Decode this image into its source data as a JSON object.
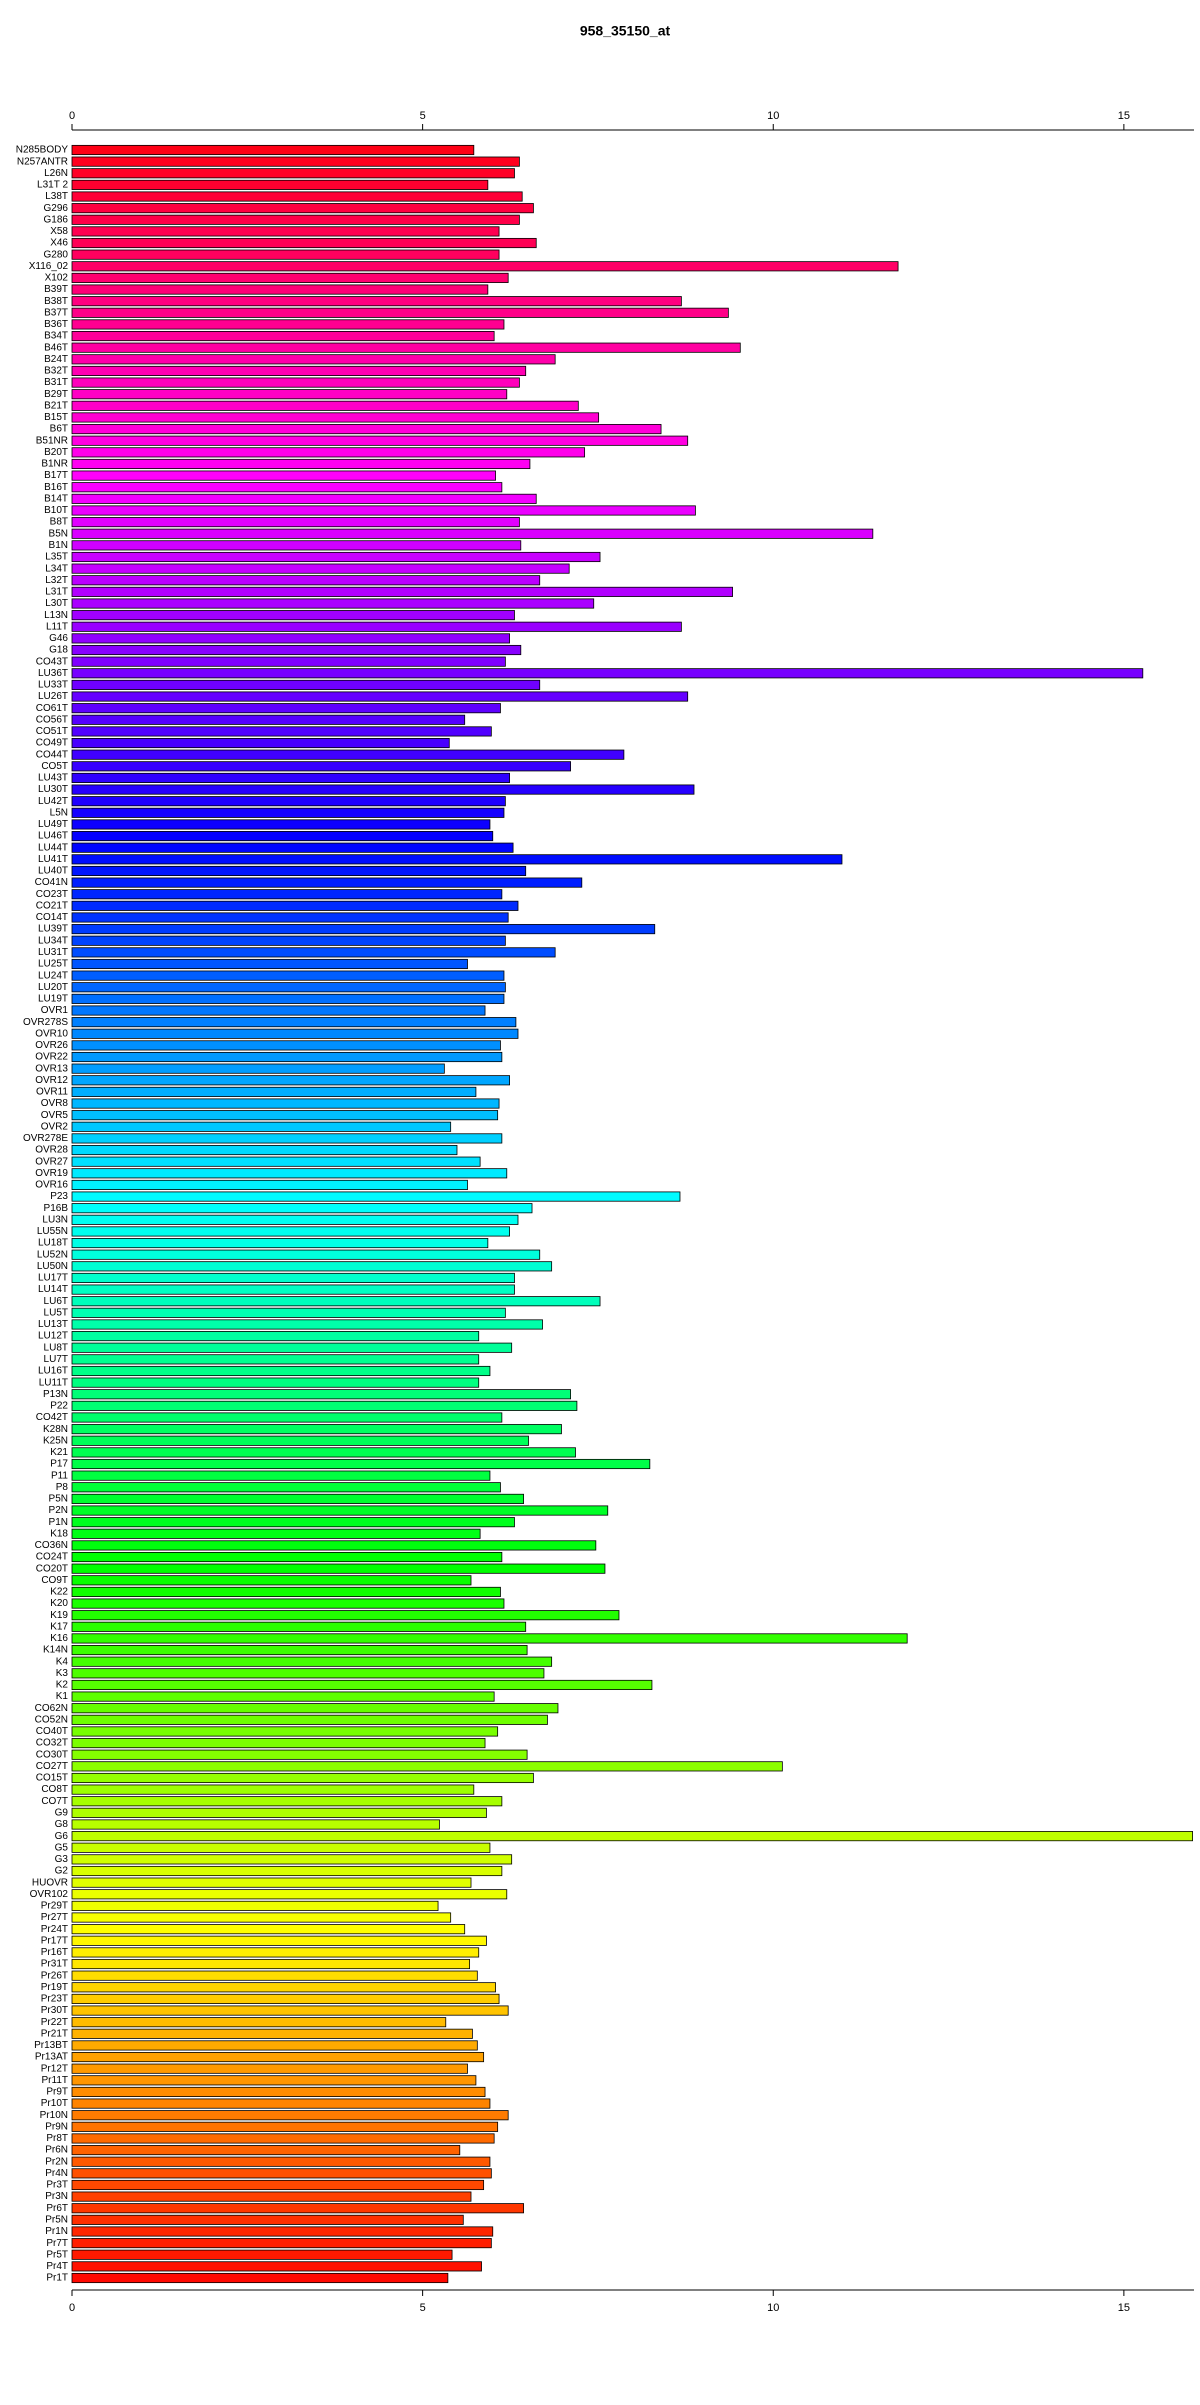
{
  "chart_data": {
    "type": "barh",
    "title": "958_35150_at",
    "categories": [
      "N285BODY",
      "N257ANTR",
      "L26N",
      "L31T 2",
      "L38T",
      "G296",
      "G186",
      "X58",
      "X46",
      "G280",
      "X116_02",
      "X102",
      "B39T",
      "B38T",
      "B37T",
      "B36T",
      "B34T",
      "B46T",
      "B24T",
      "B32T",
      "B31T",
      "B29T",
      "B21T",
      "B15T",
      "B6T",
      "B51NR",
      "B20T",
      "B1NR",
      "B17T",
      "B16T",
      "B14T",
      "B10T",
      "B8T",
      "B5N",
      "B1N",
      "L35T",
      "L34T",
      "L32T",
      "L31T",
      "L30T",
      "L13N",
      "L11T",
      "G46",
      "G18",
      "CO43T",
      "LU36T",
      "LU33T",
      "LU26T",
      "CO61T",
      "CO56T",
      "CO51T",
      "CO49T",
      "CO44T",
      "CO5T",
      "LU43T",
      "LU30T",
      "LU42T",
      "L5N",
      "LU49T",
      "LU46T",
      "LU44T",
      "LU41T",
      "LU40T",
      "CO41N",
      "CO23T",
      "CO21T",
      "CO14T",
      "LU39T",
      "LU34T",
      "LU31T",
      "LU25T",
      "LU24T",
      "LU20T",
      "LU19T",
      "OVR1",
      "OVR278S",
      "OVR10",
      "OVR26",
      "OVR22",
      "OVR13",
      "OVR12",
      "OVR11",
      "OVR8",
      "OVR5",
      "OVR2",
      "OVR278E",
      "OVR28",
      "OVR27",
      "OVR19",
      "OVR16",
      "P23",
      "P16B",
      "LU3N",
      "LU55N",
      "LU18T",
      "LU52N",
      "LU50N",
      "LU17T",
      "LU14T",
      "LU6T",
      "LU5T",
      "LU13T",
      "LU12T",
      "LU8T",
      "LU7T",
      "LU16T",
      "LU11T",
      "P13N",
      "P22",
      "CO42T",
      "K28N",
      "K25N",
      "K21",
      "P17",
      "P11",
      "P8",
      "P5N",
      "P2N",
      "P1N",
      "K18",
      "CO36N",
      "CO24T",
      "CO20T",
      "CO9T",
      "K22",
      "K20",
      "K19",
      "K17",
      "K16",
      "K14N",
      "K4",
      "K3",
      "K2",
      "K1",
      "CO62N",
      "CO52N",
      "CO40T",
      "CO32T",
      "CO30T",
      "CO27T",
      "CO15T",
      "CO8T",
      "CO7T",
      "G9",
      "G8",
      "G6",
      "G5",
      "G3",
      "G2",
      "HUOVR",
      "OVR102",
      "Pr29T",
      "Pr27T",
      "Pr24T",
      "Pr17T",
      "Pr16T",
      "Pr31T",
      "Pr26T",
      "Pr19T",
      "Pr23T",
      "Pr30T",
      "Pr22T",
      "Pr21T",
      "Pr13BT",
      "Pr13AT",
      "Pr12T",
      "Pr11T",
      "Pr9T",
      "Pr10T",
      "Pr10N",
      "Pr9N",
      "Pr8T",
      "Pr6N",
      "Pr2N",
      "Pr4N",
      "Pr3T",
      "Pr3N",
      "Pr6T",
      "Pr5N",
      "Pr1N",
      "Pr7T",
      "Pr5T",
      "Pr4T",
      "Pr1T"
    ],
    "values": [
      5.73,
      6.38,
      6.31,
      5.93,
      6.42,
      6.58,
      6.38,
      6.09,
      6.62,
      6.09,
      11.78,
      6.22,
      5.93,
      8.69,
      9.36,
      6.16,
      6.02,
      9.53,
      6.89,
      6.47,
      6.38,
      6.2,
      7.22,
      7.51,
      8.4,
      8.78,
      7.31,
      6.53,
      6.04,
      6.13,
      6.62,
      8.89,
      6.38,
      11.42,
      6.4,
      7.53,
      7.09,
      6.67,
      9.42,
      7.44,
      6.31,
      8.69,
      6.24,
      6.4,
      6.18,
      15.27,
      6.67,
      8.78,
      6.11,
      5.6,
      5.98,
      5.38,
      7.87,
      7.11,
      6.24,
      8.87,
      6.18,
      6.16,
      5.96,
      6.0,
      6.29,
      10.98,
      6.47,
      7.27,
      6.13,
      6.36,
      6.22,
      8.31,
      6.18,
      6.89,
      5.64,
      6.16,
      6.18,
      6.16,
      5.89,
      6.33,
      6.36,
      6.11,
      6.13,
      5.31,
      6.24,
      5.76,
      6.09,
      6.07,
      5.4,
      6.13,
      5.49,
      5.82,
      6.2,
      5.64,
      8.67,
      6.56,
      6.36,
      6.24,
      5.93,
      6.67,
      6.84,
      6.31,
      6.31,
      7.53,
      6.18,
      6.71,
      5.8,
      6.27,
      5.8,
      5.96,
      5.8,
      7.11,
      7.2,
      6.13,
      6.98,
      6.51,
      7.18,
      8.24,
      5.96,
      6.11,
      6.44,
      7.64,
      6.31,
      5.82,
      7.47,
      6.13,
      7.6,
      5.69,
      6.11,
      6.16,
      7.8,
      6.47,
      11.91,
      6.49,
      6.84,
      6.73,
      8.27,
      6.02,
      6.93,
      6.78,
      6.07,
      5.89,
      6.49,
      10.13,
      6.58,
      5.73,
      6.13,
      5.91,
      5.24,
      15.98,
      5.96,
      6.27,
      6.13,
      5.69,
      6.2,
      5.22,
      5.4,
      5.6,
      5.91,
      5.8,
      5.67,
      5.78,
      6.04,
      6.09,
      6.22,
      5.33,
      5.71,
      5.78,
      5.87,
      5.64,
      5.76,
      5.89,
      5.96,
      6.22,
      6.07,
      6.02,
      5.53,
      5.96,
      5.98,
      5.87,
      5.69,
      6.44,
      5.58,
      6.0,
      5.98,
      5.42,
      5.84,
      5.36
    ],
    "colors": [
      "hsl(355,100%,50%)",
      "hsl(353,100%,50%)",
      "hsl(351,100%,50%)",
      "hsl(349,100%,50%)",
      "hsl(347,100%,50%)",
      "hsl(345,100%,50%)",
      "hsl(343,100%,50%)",
      "hsl(341,100%,50%)",
      "hsl(340,100%,50%)",
      "hsl(338,100%,50%)",
      "hsl(336,100%,50%)",
      "hsl(334,100%,50%)",
      "hsl(332,100%,50%)",
      "hsl(330,100%,50%)",
      "hsl(328,100%,50%)",
      "hsl(326,100%,50%)",
      "hsl(324,100%,50%)",
      "hsl(322,100%,50%)",
      "hsl(320,100%,50%)",
      "hsl(318,100%,50%)",
      "hsl(316,100%,50%)",
      "hsl(314,100%,50%)",
      "hsl(313,100%,50%)",
      "hsl(311,100%,50%)",
      "hsl(309,100%,50%)",
      "hsl(307,100%,50%)",
      "hsl(305,100%,50%)",
      "hsl(303,100%,50%)",
      "hsl(301,100%,50%)",
      "hsl(299,100%,50%)",
      "hsl(297,100%,50%)",
      "hsl(295,100%,50%)",
      "hsl(293,100%,50%)",
      "hsl(291,100%,50%)",
      "hsl(289,100%,50%)",
      "hsl(287,100%,50%)",
      "hsl(286,100%,50%)",
      "hsl(284,100%,50%)",
      "hsl(282,100%,50%)",
      "hsl(280,100%,50%)",
      "hsl(278,100%,50%)",
      "hsl(276,100%,50%)",
      "hsl(274,100%,50%)",
      "hsl(272,100%,50%)",
      "hsl(270,100%,50%)",
      "hsl(268,100%,50%)",
      "hsl(266,100%,50%)",
      "hsl(264,100%,50%)",
      "hsl(262,100%,50%)",
      "hsl(260,100%,50%)",
      "hsl(259,100%,50%)",
      "hsl(257,100%,50%)",
      "hsl(255,100%,50%)",
      "hsl(253,100%,50%)",
      "hsl(251,100%,50%)",
      "hsl(249,100%,50%)",
      "hsl(247,100%,50%)",
      "hsl(245,100%,50%)",
      "hsl(243,100%,50%)",
      "hsl(241,100%,50%)",
      "hsl(239,100%,50%)",
      "hsl(237,100%,50%)",
      "hsl(235,100%,50%)",
      "hsl(233,100%,50%)",
      "hsl(231,100%,50%)",
      "hsl(230,100%,50%)",
      "hsl(228,100%,50%)",
      "hsl(226,100%,50%)",
      "hsl(224,100%,50%)",
      "hsl(222,100%,50%)",
      "hsl(220,100%,50%)",
      "hsl(218,100%,50%)",
      "hsl(216,100%,50%)",
      "hsl(214,100%,50%)",
      "hsl(212,100%,50%)",
      "hsl(210,100%,50%)",
      "hsl(208,100%,50%)",
      "hsl(206,100%,50%)",
      "hsl(204,100%,50%)",
      "hsl(203,100%,50%)",
      "hsl(201,100%,50%)",
      "hsl(199,100%,50%)",
      "hsl(197,100%,50%)",
      "hsl(195,100%,50%)",
      "hsl(193,100%,50%)",
      "hsl(191,100%,50%)",
      "hsl(189,100%,50%)",
      "hsl(187,100%,50%)",
      "hsl(185,100%,50%)",
      "hsl(183,100%,50%)",
      "hsl(181,100%,50%)",
      "hsl(179,100%,50%)",
      "hsl(177,100%,50%)",
      "hsl(176,100%,50%)",
      "hsl(174,100%,50%)",
      "hsl(172,100%,50%)",
      "hsl(170,100%,50%)",
      "hsl(168,100%,50%)",
      "hsl(166,100%,50%)",
      "hsl(164,100%,50%)",
      "hsl(162,100%,50%)",
      "hsl(160,100%,50%)",
      "hsl(158,100%,50%)",
      "hsl(156,100%,50%)",
      "hsl(154,100%,50%)",
      "hsl(152,100%,50%)",
      "hsl(150,100%,50%)",
      "hsl(148,100%,50%)",
      "hsl(147,100%,50%)",
      "hsl(145,100%,50%)",
      "hsl(143,100%,50%)",
      "hsl(141,100%,50%)",
      "hsl(139,100%,50%)",
      "hsl(137,100%,50%)",
      "hsl(135,100%,50%)",
      "hsl(133,100%,50%)",
      "hsl(131,100%,50%)",
      "hsl(129,100%,50%)",
      "hsl(127,100%,50%)",
      "hsl(125,100%,50%)",
      "hsl(123,100%,50%)",
      "hsl(121,100%,50%)",
      "hsl(120,100%,50%)",
      "hsl(118,100%,50%)",
      "hsl(116,100%,50%)",
      "hsl(114,100%,50%)",
      "hsl(112,100%,50%)",
      "hsl(110,100%,50%)",
      "hsl(108,100%,50%)",
      "hsl(106,100%,50%)",
      "hsl(104,100%,50%)",
      "hsl(102,100%,50%)",
      "hsl(100,100%,50%)",
      "hsl(98,100%,50%)",
      "hsl(96,100%,50%)",
      "hsl(94,100%,50%)",
      "hsl(92,100%,50%)",
      "hsl(91,100%,50%)",
      "hsl(89,100%,50%)",
      "hsl(87,100%,50%)",
      "hsl(85,100%,50%)",
      "hsl(83,100%,50%)",
      "hsl(81,100%,50%)",
      "hsl(79,100%,50%)",
      "hsl(77,100%,50%)",
      "hsl(75,100%,50%)",
      "hsl(73,100%,50%)",
      "hsl(71,100%,50%)",
      "hsl(69,100%,50%)",
      "hsl(67,100%,50%)",
      "hsl(65,100%,50%)",
      "hsl(64,100%,50%)",
      "hsl(62,100%,50%)",
      "hsl(60,100%,50%)",
      "hsl(58,100%,50%)",
      "hsl(56,100%,50%)",
      "hsl(54,100%,50%)",
      "hsl(52,100%,50%)",
      "hsl(50,100%,50%)",
      "hsl(48,100%,50%)",
      "hsl(46,100%,50%)",
      "hsl(44,100%,50%)",
      "hsl(42,100%,50%)",
      "hsl(40,100%,50%)",
      "hsl(38,100%,50%)",
      "hsl(36,100%,50%)",
      "hsl(35,100%,50%)",
      "hsl(33,100%,50%)",
      "hsl(31,100%,50%)",
      "hsl(29,100%,50%)",
      "hsl(27,100%,50%)",
      "hsl(25,100%,50%)",
      "hsl(23,100%,50%)",
      "hsl(21,100%,50%)",
      "hsl(19,100%,50%)",
      "hsl(17,100%,50%)",
      "hsl(15,100%,50%)",
      "hsl(13,100%,50%)",
      "hsl(11,100%,50%)",
      "hsl(9,100%,50%)",
      "hsl(7,100%,50%)",
      "hsl(6,100%,50%)",
      "hsl(4,100%,50%)",
      "hsl(2,100%,50%)"
    ],
    "xlim": [
      0,
      16
    ],
    "xticks": [
      0,
      5,
      10,
      15
    ]
  }
}
